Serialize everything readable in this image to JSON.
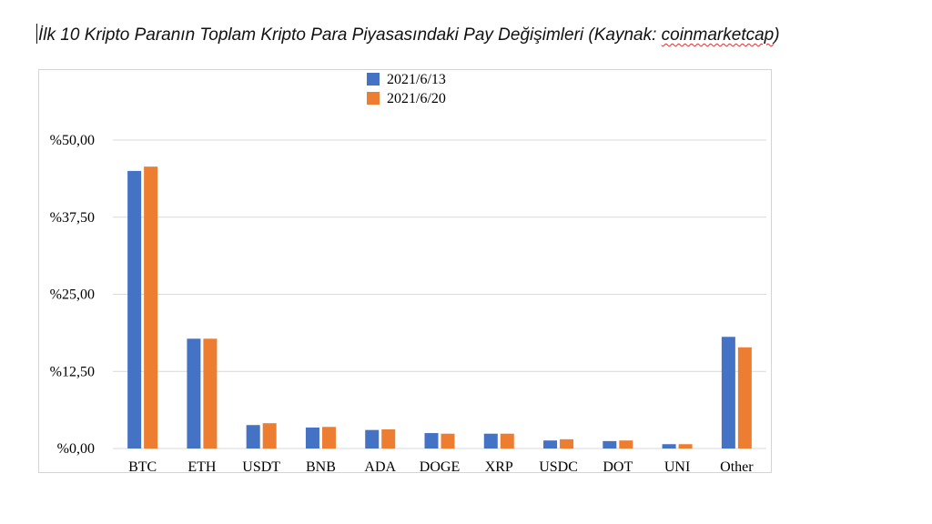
{
  "document": {
    "title_prefix": "İlk 10 Kripto Paranın Toplam Kripto Para Piyasasındaki Pay Değişimleri (Kaynak: ",
    "title_link": "coinmarketcap",
    "title_suffix": ")"
  },
  "chart_data": {
    "type": "bar",
    "title": "",
    "xlabel": "",
    "ylabel": "",
    "categories": [
      "BTC",
      "ETH",
      "USDT",
      "BNB",
      "ADA",
      "DOGE",
      "XRP",
      "USDC",
      "DOT",
      "UNI",
      "Other"
    ],
    "series": [
      {
        "name": "2021/6/13",
        "color": "#4472c4",
        "values": [
          45.0,
          17.8,
          3.8,
          3.4,
          3.0,
          2.5,
          2.4,
          1.3,
          1.2,
          0.7,
          18.1
        ]
      },
      {
        "name": "2021/6/20",
        "color": "#ed7d31",
        "values": [
          45.7,
          17.8,
          4.1,
          3.5,
          3.1,
          2.4,
          2.4,
          1.5,
          1.3,
          0.7,
          16.4
        ]
      }
    ],
    "ylim": [
      0,
      50
    ],
    "yticks": [
      0,
      12.5,
      25,
      37.5,
      50
    ],
    "ytick_labels": [
      "%0,00",
      "%12,50",
      "%25,00",
      "%37,50",
      "%50,00"
    ],
    "grid": true,
    "legend_position": "top-center"
  }
}
